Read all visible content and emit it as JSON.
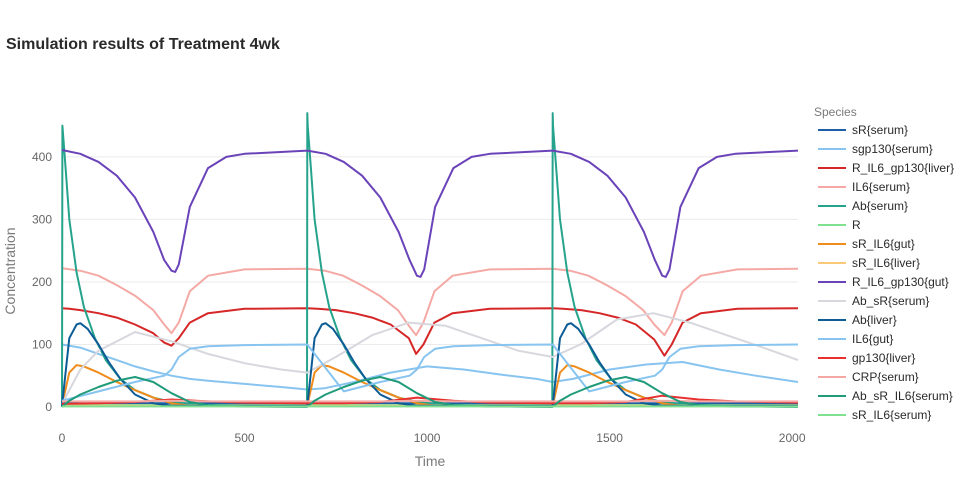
{
  "chart_data": {
    "type": "line",
    "title": "Simulation results of Treatment 4wk",
    "xlabel": "Time",
    "ylabel": "Concentration",
    "xlim": [
      0,
      2016
    ],
    "ylim": [
      -8,
      475
    ],
    "x_ticks": [
      0,
      500,
      1000,
      1500,
      2000
    ],
    "y_ticks": [
      0,
      100,
      200,
      300,
      400
    ],
    "grid": true,
    "legend": {
      "title": "Species",
      "placement": "right"
    },
    "series": [
      {
        "name": "sR{serum}",
        "color": "#1f5fa8",
        "x": [
          0,
          20,
          50,
          100,
          150,
          200,
          250,
          300,
          350,
          400,
          500,
          672,
          690,
          720,
          770,
          820,
          870,
          920,
          970,
          1020,
          1070,
          1172,
          1344,
          1362,
          1392,
          1442,
          1492,
          1542,
          1592,
          1642,
          1692,
          1742,
          1844,
          2016
        ],
        "y": [
          8,
          7,
          6,
          6,
          6,
          6,
          6,
          6,
          6,
          6,
          6,
          6,
          6,
          6,
          6,
          6,
          6,
          6,
          6,
          6,
          6,
          6,
          6,
          6,
          6,
          6,
          6,
          6,
          6,
          6,
          6,
          6,
          6,
          6
        ]
      },
      {
        "name": "sgp130{serum}",
        "color": "#87c4ef",
        "x": [
          0,
          50,
          100,
          150,
          200,
          250,
          300,
          350,
          400,
          500,
          600,
          672,
          720,
          800,
          900,
          1000,
          1100,
          1200,
          1300,
          1344,
          1400,
          1500,
          1600,
          1700,
          1800,
          1900,
          2016
        ],
        "y": [
          100,
          95,
          85,
          75,
          65,
          57,
          50,
          45,
          42,
          37,
          32,
          28,
          30,
          40,
          55,
          65,
          60,
          52,
          45,
          40,
          45,
          60,
          68,
          72,
          60,
          50,
          40
        ]
      },
      {
        "name": "R_IL6_gp130{liver}",
        "color": "#d62728",
        "x": [
          0,
          20,
          50,
          100,
          150,
          200,
          250,
          280,
          300,
          320,
          350,
          400,
          500,
          672,
          700,
          750,
          800,
          850,
          900,
          950,
          970,
          990,
          1020,
          1070,
          1172,
          1344,
          1372,
          1422,
          1472,
          1522,
          1572,
          1622,
          1650,
          1670,
          1700,
          1750,
          1850,
          2016
        ],
        "y": [
          158,
          157,
          155,
          150,
          143,
          132,
          118,
          103,
          98,
          110,
          135,
          150,
          157,
          158,
          157,
          155,
          150,
          143,
          132,
          110,
          85,
          100,
          135,
          150,
          157,
          158,
          157,
          155,
          150,
          143,
          132,
          108,
          82,
          100,
          135,
          150,
          157,
          158
        ]
      },
      {
        "name": "IL6{serum}",
        "color": "#f4a9a5",
        "x": [
          0,
          50,
          100,
          150,
          200,
          250,
          280,
          300,
          320,
          350,
          400,
          500,
          672,
          720,
          770,
          820,
          870,
          920,
          950,
          970,
          990,
          1020,
          1070,
          1172,
          1344,
          1392,
          1442,
          1492,
          1542,
          1592,
          1622,
          1650,
          1670,
          1700,
          1750,
          1850,
          2016
        ],
        "y": [
          222,
          218,
          210,
          195,
          178,
          155,
          132,
          118,
          135,
          185,
          210,
          220,
          221,
          218,
          210,
          195,
          178,
          155,
          130,
          115,
          135,
          185,
          210,
          220,
          221,
          218,
          210,
          195,
          178,
          155,
          132,
          115,
          135,
          185,
          210,
          220,
          221
        ]
      },
      {
        "name": "Ab{serum}",
        "color": "#26a38c",
        "x": [
          0,
          1,
          10,
          20,
          40,
          60,
          90,
          120,
          160,
          200,
          250,
          300,
          350,
          400,
          500,
          671,
          672,
          673,
          682,
          692,
          712,
          732,
          762,
          792,
          832,
          872,
          922,
          972,
          1022,
          1072,
          1172,
          1343,
          1344,
          1345,
          1354,
          1364,
          1384,
          1404,
          1434,
          1464,
          1504,
          1544,
          1594,
          1644,
          1694,
          1744,
          1844,
          2016
        ],
        "y": [
          0,
          450,
          380,
          300,
          215,
          160,
          110,
          75,
          45,
          27,
          15,
          8,
          5,
          3,
          1,
          0.5,
          470,
          450,
          380,
          300,
          215,
          160,
          110,
          75,
          45,
          27,
          15,
          8,
          5,
          3,
          1,
          0.5,
          470,
          450,
          380,
          300,
          215,
          160,
          110,
          75,
          45,
          27,
          15,
          8,
          5,
          3,
          1,
          0.5
        ]
      },
      {
        "name": "R",
        "color": "#7fe08f",
        "x": [
          0,
          2016
        ],
        "y": [
          3,
          3
        ]
      },
      {
        "name": "sR_IL6{gut}",
        "color": "#ef8c1b",
        "x": [
          0,
          20,
          40,
          60,
          100,
          150,
          200,
          250,
          300,
          350,
          672,
          692,
          712,
          732,
          772,
          822,
          872,
          922,
          972,
          1022,
          1344,
          1364,
          1384,
          1404,
          1444,
          1494,
          1544,
          1594,
          1644,
          1694,
          2016
        ],
        "y": [
          3,
          55,
          67,
          65,
          55,
          40,
          27,
          15,
          6,
          2,
          2,
          55,
          67,
          65,
          55,
          40,
          27,
          15,
          6,
          2,
          2,
          55,
          67,
          65,
          55,
          40,
          27,
          15,
          6,
          2,
          2
        ]
      },
      {
        "name": "sR_IL6{liver}",
        "color": "#fbc97a",
        "x": [
          0,
          2016
        ],
        "y": [
          2,
          2
        ]
      },
      {
        "name": "R_IL6_gp130{gut}",
        "color": "#6a43b9",
        "x": [
          0,
          50,
          100,
          150,
          200,
          250,
          280,
          300,
          310,
          320,
          350,
          400,
          450,
          500,
          672,
          722,
          772,
          822,
          872,
          922,
          952,
          972,
          982,
          992,
          1022,
          1072,
          1122,
          1172,
          1344,
          1394,
          1444,
          1494,
          1544,
          1594,
          1624,
          1644,
          1654,
          1664,
          1694,
          1744,
          1794,
          1844,
          2016
        ],
        "y": [
          411,
          405,
          392,
          370,
          335,
          280,
          235,
          218,
          216,
          228,
          320,
          382,
          400,
          405,
          410,
          405,
          392,
          370,
          335,
          280,
          235,
          210,
          208,
          220,
          320,
          382,
          400,
          405,
          410,
          405,
          392,
          370,
          335,
          280,
          235,
          210,
          208,
          220,
          320,
          382,
          400,
          405,
          410
        ]
      },
      {
        "name": "Ab_sR{serum}",
        "color": "#d7d7de",
        "x": [
          0,
          50,
          100,
          200,
          300,
          400,
          500,
          600,
          672,
          750,
          850,
          950,
          1050,
          1150,
          1250,
          1344,
          1420,
          1520,
          1620,
          1720,
          1820,
          1920,
          2016
        ],
        "y": [
          5,
          60,
          90,
          120,
          105,
          85,
          70,
          60,
          55,
          80,
          115,
          135,
          130,
          110,
          90,
          80,
          100,
          140,
          150,
          135,
          115,
          95,
          75
        ]
      },
      {
        "name": "Ab{liver}",
        "color": "#0d5c96",
        "x": [
          0,
          20,
          40,
          50,
          70,
          100,
          130,
          160,
          200,
          250,
          300,
          672,
          692,
          712,
          722,
          742,
          772,
          802,
          832,
          872,
          922,
          972,
          1344,
          1364,
          1384,
          1394,
          1414,
          1444,
          1474,
          1504,
          1544,
          1594,
          1644,
          2016
        ],
        "y": [
          2,
          110,
          132,
          134,
          125,
          100,
          70,
          45,
          20,
          6,
          2,
          2,
          110,
          132,
          134,
          125,
          100,
          70,
          45,
          20,
          6,
          2,
          2,
          110,
          132,
          134,
          125,
          100,
          70,
          45,
          20,
          6,
          2,
          2
        ]
      },
      {
        "name": "IL6{gut}",
        "color": "#87c4ef",
        "x": [
          0,
          100,
          200,
          280,
          300,
          320,
          350,
          400,
          500,
          672,
          772,
          872,
          952,
          972,
          992,
          1022,
          1072,
          1172,
          1344,
          1444,
          1544,
          1624,
          1644,
          1664,
          1694,
          1744,
          1844,
          2016
        ],
        "y": [
          10,
          25,
          40,
          50,
          60,
          80,
          93,
          97,
          99,
          100,
          25,
          40,
          50,
          60,
          80,
          93,
          97,
          99,
          100,
          25,
          40,
          50,
          60,
          80,
          93,
          97,
          99,
          100
        ]
      },
      {
        "name": "gp130{liver}",
        "color": "#e8302f",
        "x": [
          0,
          100,
          200,
          300,
          400,
          500,
          672,
          772,
          872,
          972,
          1072,
          1172,
          1344,
          1444,
          1544,
          1644,
          1744,
          1844,
          2016
        ],
        "y": [
          5,
          6,
          8,
          12,
          9,
          7,
          6,
          6,
          8,
          15,
          10,
          7,
          6,
          6,
          8,
          18,
          12,
          9,
          7
        ]
      },
      {
        "name": "CRP{serum}",
        "color": "#f4a9a5",
        "x": [
          0,
          100,
          200,
          300,
          400,
          500,
          672,
          772,
          872,
          972,
          1072,
          1172,
          1344,
          1444,
          1544,
          1644,
          1744,
          1844,
          2016
        ],
        "y": [
          9,
          9,
          9,
          10,
          9,
          9,
          9,
          9,
          9,
          10,
          9,
          9,
          9,
          9,
          9,
          10,
          9,
          9,
          9
        ]
      },
      {
        "name": "Ab_sR_IL6{serum}",
        "color": "#1f9b7a",
        "x": [
          0,
          20,
          50,
          100,
          150,
          200,
          250,
          300,
          350,
          400,
          500,
          672,
          692,
          722,
          772,
          822,
          872,
          922,
          972,
          1022,
          1072,
          1172,
          1344,
          1364,
          1394,
          1444,
          1494,
          1544,
          1594,
          1644,
          1694,
          1744,
          1844,
          2016
        ],
        "y": [
          0,
          10,
          20,
          32,
          42,
          48,
          40,
          22,
          8,
          3,
          1,
          0.5,
          10,
          20,
          32,
          42,
          48,
          40,
          22,
          8,
          3,
          1,
          0.5,
          10,
          20,
          32,
          42,
          48,
          40,
          22,
          8,
          3,
          1,
          0.5
        ]
      },
      {
        "name": "sR_IL6{serum}",
        "color": "#7fe08f",
        "x": [
          0,
          2016
        ],
        "y": [
          1,
          1
        ]
      }
    ]
  }
}
